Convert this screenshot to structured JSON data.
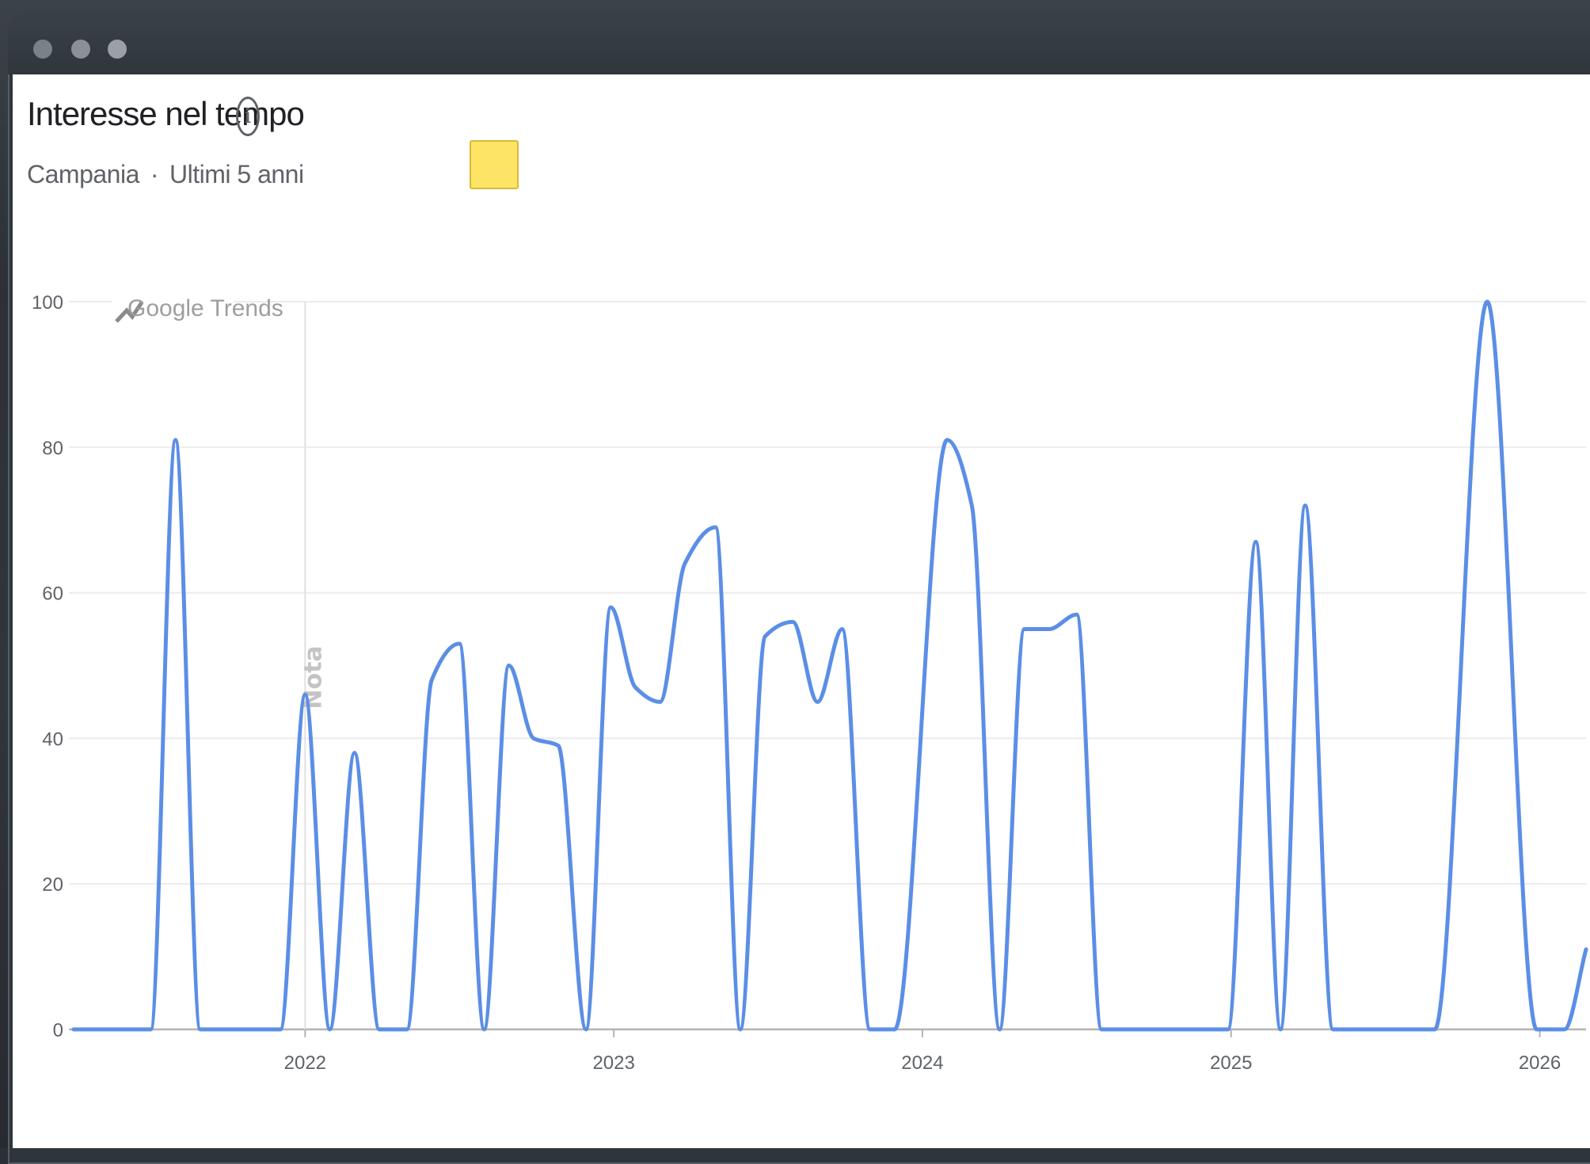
{
  "window": {
    "controls": [
      "close",
      "minimize",
      "zoom"
    ]
  },
  "header": {
    "title": "Interesse nel tempo",
    "info_icon": "info-icon",
    "region": "Campania",
    "separator": "·",
    "period": "Ultimi 5 anni"
  },
  "legend": {
    "color": "#fde464"
  },
  "chart_data": {
    "type": "line",
    "watermark": "Google Trends",
    "annotation": "Nota",
    "annotation_x": 2022.0,
    "series_color": "#5b8ee6",
    "xlim": [
      2021.25,
      2026.15
    ],
    "ylim": [
      0,
      100
    ],
    "yticks": [
      0,
      20,
      40,
      60,
      80,
      100
    ],
    "xticks": [
      2022,
      2023,
      2024,
      2025,
      2026
    ],
    "grid": true,
    "series": [
      {
        "x": [
          2021.25,
          2021.5,
          2021.58,
          2021.66,
          2021.92,
          2022.0,
          2022.08,
          2022.16,
          2022.24,
          2022.33,
          2022.41,
          2022.5,
          2022.58,
          2022.66,
          2022.74,
          2022.82,
          2022.91,
          2022.99,
          2023.07,
          2023.15,
          2023.23,
          2023.33,
          2023.41,
          2023.49,
          2023.58,
          2023.66,
          2023.74,
          2023.83,
          2023.91,
          2024.08,
          2024.16,
          2024.25,
          2024.33,
          2024.41,
          2024.5,
          2024.58,
          2024.99,
          2025.08,
          2025.16,
          2025.24,
          2025.33,
          2025.66,
          2025.83,
          2025.99,
          2026.08,
          2026.15
        ],
        "y": [
          0,
          0,
          81,
          0,
          0,
          46,
          0,
          38,
          0,
          0,
          48,
          53,
          0,
          50,
          40,
          39,
          0,
          58,
          47,
          45,
          64,
          69,
          0,
          54,
          56,
          45,
          55,
          0,
          0,
          81,
          72,
          0,
          55,
          55,
          57,
          0,
          0,
          67,
          0,
          72,
          0,
          0,
          100,
          0,
          0,
          11
        ]
      }
    ]
  }
}
